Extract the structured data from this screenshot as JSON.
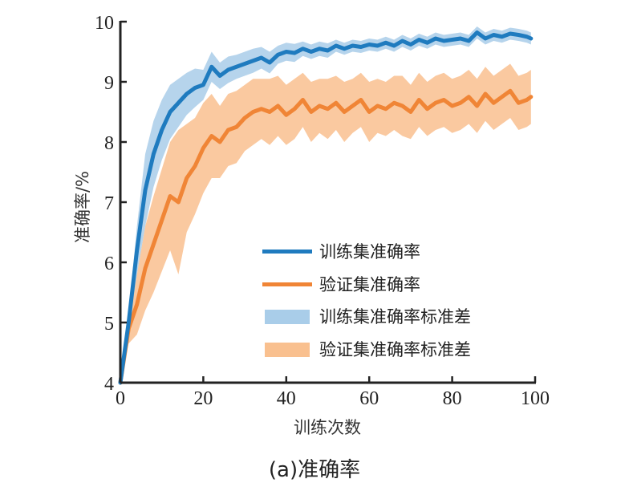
{
  "chart_data": {
    "type": "line",
    "title": "",
    "caption": "(a)准确率",
    "xlabel": "训练次数",
    "ylabel": "准确率/%",
    "xlim": [
      0,
      100
    ],
    "ylim": [
      4,
      10
    ],
    "xticks": [
      "0",
      "20",
      "40",
      "60",
      "80",
      "100"
    ],
    "yticks": [
      "4",
      "5",
      "6",
      "7",
      "8",
      "9",
      "10"
    ],
    "grid": false,
    "legend_position": "center-right",
    "x": [
      0,
      2,
      4,
      6,
      8,
      10,
      12,
      14,
      16,
      18,
      20,
      22,
      24,
      26,
      28,
      30,
      32,
      34,
      36,
      38,
      40,
      42,
      44,
      46,
      48,
      50,
      52,
      54,
      56,
      58,
      60,
      62,
      64,
      66,
      68,
      70,
      72,
      74,
      76,
      78,
      80,
      82,
      84,
      86,
      88,
      90,
      92,
      94,
      96,
      98,
      99
    ],
    "series": [
      {
        "name": "训练集准确率",
        "color": "#1f7bbf",
        "values": [
          4.0,
          5.0,
          6.2,
          7.2,
          7.8,
          8.2,
          8.5,
          8.65,
          8.8,
          8.9,
          8.95,
          9.25,
          9.1,
          9.2,
          9.25,
          9.3,
          9.35,
          9.4,
          9.32,
          9.45,
          9.5,
          9.48,
          9.55,
          9.5,
          9.55,
          9.52,
          9.6,
          9.55,
          9.6,
          9.58,
          9.62,
          9.6,
          9.65,
          9.6,
          9.68,
          9.62,
          9.7,
          9.65,
          9.72,
          9.68,
          9.7,
          9.72,
          9.68,
          9.82,
          9.72,
          9.78,
          9.75,
          9.8,
          9.78,
          9.75,
          9.72
        ]
      },
      {
        "name": "验证集准确率",
        "color": "#f08536",
        "values": [
          4.0,
          4.9,
          5.3,
          5.9,
          6.3,
          6.7,
          7.1,
          7.0,
          7.4,
          7.6,
          7.9,
          8.1,
          8.0,
          8.2,
          8.25,
          8.4,
          8.5,
          8.55,
          8.5,
          8.6,
          8.45,
          8.55,
          8.7,
          8.5,
          8.6,
          8.55,
          8.65,
          8.5,
          8.6,
          8.7,
          8.5,
          8.6,
          8.55,
          8.65,
          8.6,
          8.5,
          8.7,
          8.55,
          8.65,
          8.7,
          8.6,
          8.65,
          8.75,
          8.6,
          8.8,
          8.65,
          8.75,
          8.85,
          8.65,
          8.7,
          8.75
        ]
      }
    ],
    "bands": [
      {
        "name": "训练集准确率标准差",
        "color": "#a9cde9",
        "std": [
          0.05,
          0.15,
          0.4,
          0.6,
          0.55,
          0.5,
          0.45,
          0.4,
          0.35,
          0.32,
          0.25,
          0.25,
          0.22,
          0.22,
          0.2,
          0.2,
          0.2,
          0.18,
          0.18,
          0.15,
          0.15,
          0.15,
          0.12,
          0.12,
          0.12,
          0.12,
          0.1,
          0.1,
          0.1,
          0.1,
          0.1,
          0.1,
          0.1,
          0.1,
          0.1,
          0.1,
          0.1,
          0.1,
          0.1,
          0.1,
          0.1,
          0.1,
          0.1,
          0.1,
          0.1,
          0.1,
          0.1,
          0.1,
          0.1,
          0.1,
          0.1
        ]
      },
      {
        "name": "验证集准确率标准差",
        "color": "#f9c08f",
        "std": [
          0.2,
          0.25,
          0.5,
          0.7,
          0.8,
          0.85,
          0.9,
          1.2,
          0.9,
          0.8,
          0.75,
          0.7,
          0.6,
          0.6,
          0.6,
          0.55,
          0.55,
          0.5,
          0.55,
          0.5,
          0.5,
          0.5,
          0.45,
          0.5,
          0.45,
          0.5,
          0.45,
          0.5,
          0.45,
          0.45,
          0.5,
          0.45,
          0.45,
          0.45,
          0.5,
          0.45,
          0.45,
          0.45,
          0.45,
          0.45,
          0.45,
          0.45,
          0.45,
          0.45,
          0.45,
          0.45,
          0.45,
          0.45,
          0.45,
          0.45,
          0.45
        ]
      }
    ]
  }
}
